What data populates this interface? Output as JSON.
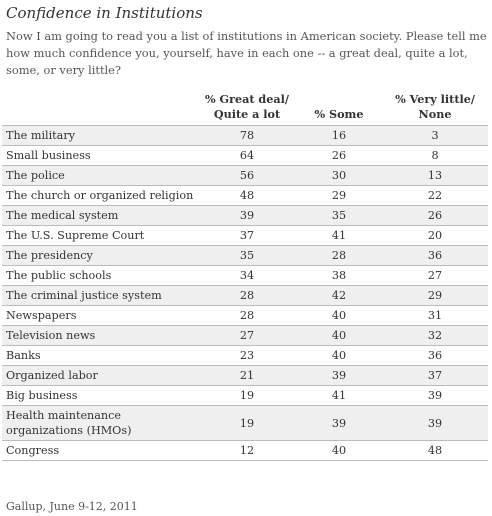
{
  "title": "Confidence in Institutions",
  "question": "Now I am going to read you a list of institutions in American society.  Please tell me how much confidence you, yourself, have in each one -- a great deal, quite a lot, some, or very little?",
  "chart_data": {
    "type": "table",
    "columns": [
      "% Great deal/ Quite a lot",
      "% Some",
      "% Very little/ None"
    ],
    "rows": [
      {
        "label": "The military",
        "values": [
          78,
          16,
          3
        ]
      },
      {
        "label": "Small business",
        "values": [
          64,
          26,
          8
        ]
      },
      {
        "label": "The police",
        "values": [
          56,
          30,
          13
        ]
      },
      {
        "label": "The church or organized religion",
        "values": [
          48,
          29,
          22
        ]
      },
      {
        "label": "The medical system",
        "values": [
          39,
          35,
          26
        ]
      },
      {
        "label": "The U.S. Supreme Court",
        "values": [
          37,
          41,
          20
        ]
      },
      {
        "label": "The presidency",
        "values": [
          35,
          28,
          36
        ]
      },
      {
        "label": "The public schools",
        "values": [
          34,
          38,
          27
        ]
      },
      {
        "label": "The criminal justice system",
        "values": [
          28,
          42,
          29
        ]
      },
      {
        "label": "Newspapers",
        "values": [
          28,
          40,
          31
        ]
      },
      {
        "label": "Television news",
        "values": [
          27,
          40,
          32
        ]
      },
      {
        "label": "Banks",
        "values": [
          23,
          40,
          36
        ]
      },
      {
        "label": "Organized labor",
        "values": [
          21,
          39,
          37
        ]
      },
      {
        "label": "Big business",
        "values": [
          19,
          41,
          39
        ]
      },
      {
        "label": "Health maintenance organizations (HMOs)",
        "values": [
          19,
          39,
          39
        ]
      },
      {
        "label": "Congress",
        "values": [
          12,
          40,
          48
        ]
      }
    ]
  },
  "source": "Gallup, June 9-12, 2011",
  "colors": {
    "stripe": "#efefef",
    "rule": "#bbbbbb",
    "text": "#333333"
  }
}
